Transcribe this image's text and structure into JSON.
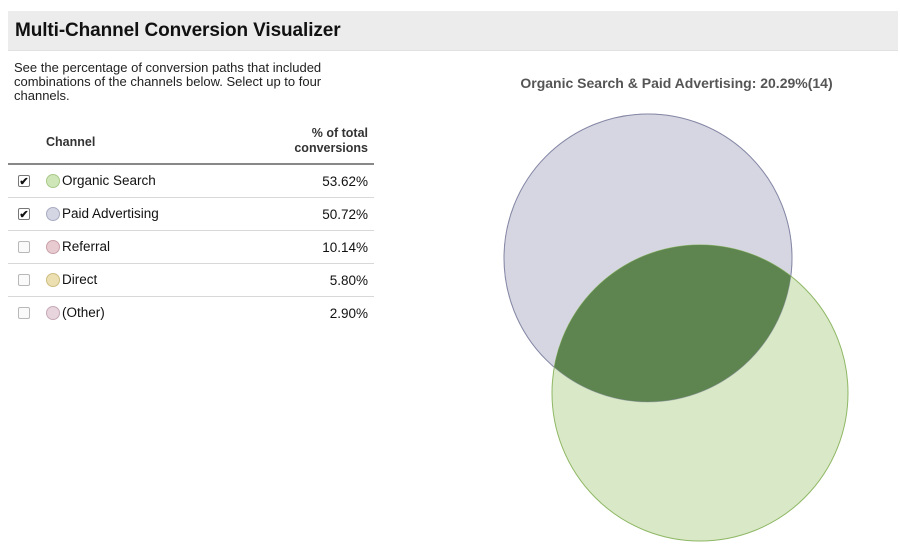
{
  "title": "Multi-Channel Conversion Visualizer",
  "intro": "See the percentage of conversion paths that included combinations of the channels below. Select up to four channels.",
  "table": {
    "col_channel": "Channel",
    "col_pct_line1": "% of total",
    "col_pct_line2": "conversions",
    "rows": [
      {
        "label": "Organic Search",
        "pct": "53.62%",
        "checked": true,
        "color": "#cfe6b8",
        "border": "#a9c98a"
      },
      {
        "label": "Paid Advertising",
        "pct": "50.72%",
        "checked": true,
        "color": "#d4d6e4",
        "border": "#a9abc2"
      },
      {
        "label": "Referral",
        "pct": "10.14%",
        "checked": false,
        "color": "#e8cbd1",
        "border": "#c9a1aa"
      },
      {
        "label": "Direct",
        "pct": "5.80%",
        "checked": false,
        "color": "#ecdfb1",
        "border": "#cdbd82"
      },
      {
        "label": "(Other)",
        "pct": "2.90%",
        "checked": false,
        "color": "#e8d4dc",
        "border": "#c6a9b7"
      }
    ]
  },
  "visualization": {
    "title": "Organic Search & Paid Advertising: 20.29%(14)",
    "colors": {
      "paid_fill": "#d5d6e2",
      "paid_stroke": "#8688a6",
      "organic_fill": "#d9e8c6",
      "organic_stroke": "#8fb866",
      "overlap_fill": "#5e8450"
    }
  }
}
